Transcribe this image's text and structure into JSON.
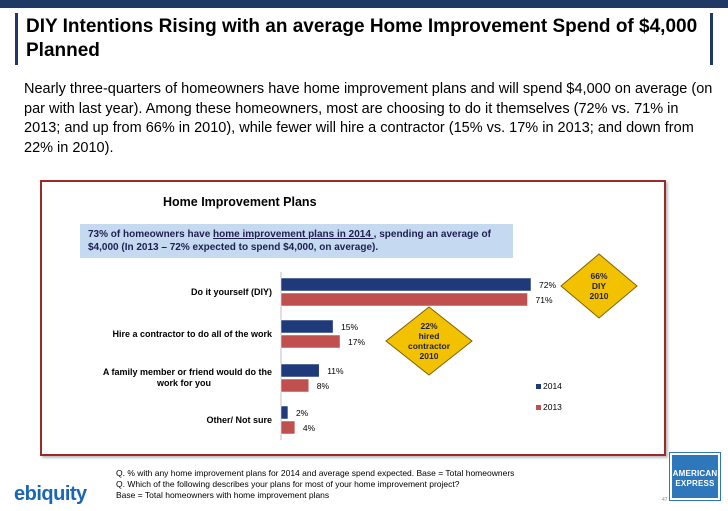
{
  "title": "DIY Intentions Rising with an average Home Improvement Spend of $4,000 Planned",
  "summary": "Nearly three-quarters of homeowners have home improvement plans and will spend $4,000 on average (on par with last year).    Among these homeowners, most are choosing to do it themselves (72% vs. 71% in 2013; and up from 66% in 2010), while fewer will hire a contractor (15% vs. 17% in 2013; and down from 22% in 2010).",
  "callout": {
    "before": "73% of homeowners have ",
    "underlined": "home improvement plans in 2014 ",
    "after": ", spending an average of $4,000 (In 2013 – 72% expected to spend $4,000, on average)."
  },
  "chart_data": {
    "type": "bar",
    "orientation": "horizontal",
    "title": "Home Improvement Plans",
    "categories": [
      "Do it yourself (DIY)",
      "Hire a contractor to do all of the work",
      "A family member or friend would do the work for you",
      "Other/ Not sure"
    ],
    "series": [
      {
        "name": "2014",
        "values": [
          72,
          15,
          11,
          2
        ],
        "labels": [
          "72%",
          "15%",
          "11%",
          "2%"
        ],
        "color": "#1f3a7a"
      },
      {
        "name": "2013",
        "values": [
          71,
          17,
          8,
          4
        ],
        "labels": [
          "71%",
          "17%",
          "8%",
          "4%"
        ],
        "color": "#c0504d"
      }
    ],
    "xlim": [
      0,
      100
    ],
    "grid": false,
    "legend_position": "right",
    "annotations": [
      {
        "lines": [
          "66%",
          "DIY",
          "2010"
        ],
        "category": "Do it yourself (DIY)"
      },
      {
        "lines": [
          "22%",
          "hired",
          "contractor",
          "2010"
        ],
        "category": "Hire a contractor to do all of the work"
      }
    ],
    "annotation_color": "#f2c200"
  },
  "footnotes": [
    "Q. % with any home improvement plans for 2014 and average spend expected. Base = Total homeowners",
    "Q.  Which of the following describes your plans for most of your home improvement project?",
    "Base = Total homeowners with home improvement plans"
  ],
  "logos": {
    "ebiquity": "ebiquity",
    "amex": [
      "AMERICAN",
      "EXPRESS"
    ]
  },
  "page_number": "47"
}
